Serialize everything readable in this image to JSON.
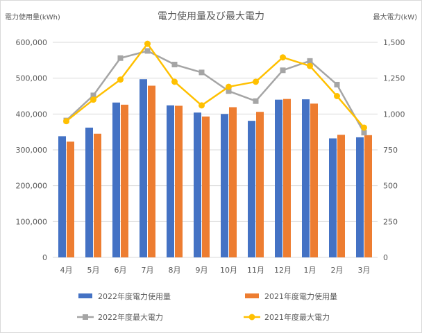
{
  "chart_data": {
    "type": "bar",
    "title": "電力使用量及び最大電力",
    "ylabel_left": "電力使用量(kWh)",
    "ylabel_right": "最大電力(kW)",
    "categories": [
      "4月",
      "5月",
      "6月",
      "7月",
      "8月",
      "9月",
      "10月",
      "11月",
      "12月",
      "1月",
      "2月",
      "3月"
    ],
    "ylim_left": [
      0,
      600000
    ],
    "ylim_right": [
      0,
      1500
    ],
    "yticks_left": [
      "0",
      "100,000",
      "200,000",
      "300,000",
      "400,000",
      "500,000",
      "600,000"
    ],
    "yticks_right": [
      "0",
      "250",
      "500",
      "750",
      "1,000",
      "1,250",
      "1,500"
    ],
    "grid": true,
    "legend_position": "bottom",
    "bar_series": [
      {
        "name": "2022年度電力使用量",
        "color": "#4472c4",
        "values": [
          338000,
          362000,
          432000,
          497000,
          424000,
          404000,
          400000,
          381000,
          440000,
          441000,
          332000,
          335000
        ]
      },
      {
        "name": "2021年度電力使用量",
        "color": "#ed7d31",
        "values": [
          323000,
          345000,
          426000,
          479000,
          423000,
          393000,
          419000,
          406000,
          442000,
          429000,
          342000,
          341000
        ]
      }
    ],
    "line_series": [
      {
        "name": "2022年度最大電力",
        "color": "#a5a5a5",
        "marker": "square",
        "values": [
          955,
          1130,
          1390,
          1440,
          1345,
          1290,
          1160,
          1090,
          1305,
          1370,
          1205,
          870
        ]
      },
      {
        "name": "2021年度最大電力",
        "color": "#ffc000",
        "marker": "circle",
        "values": [
          950,
          1100,
          1240,
          1490,
          1225,
          1060,
          1190,
          1225,
          1395,
          1335,
          1125,
          905
        ]
      }
    ]
  }
}
